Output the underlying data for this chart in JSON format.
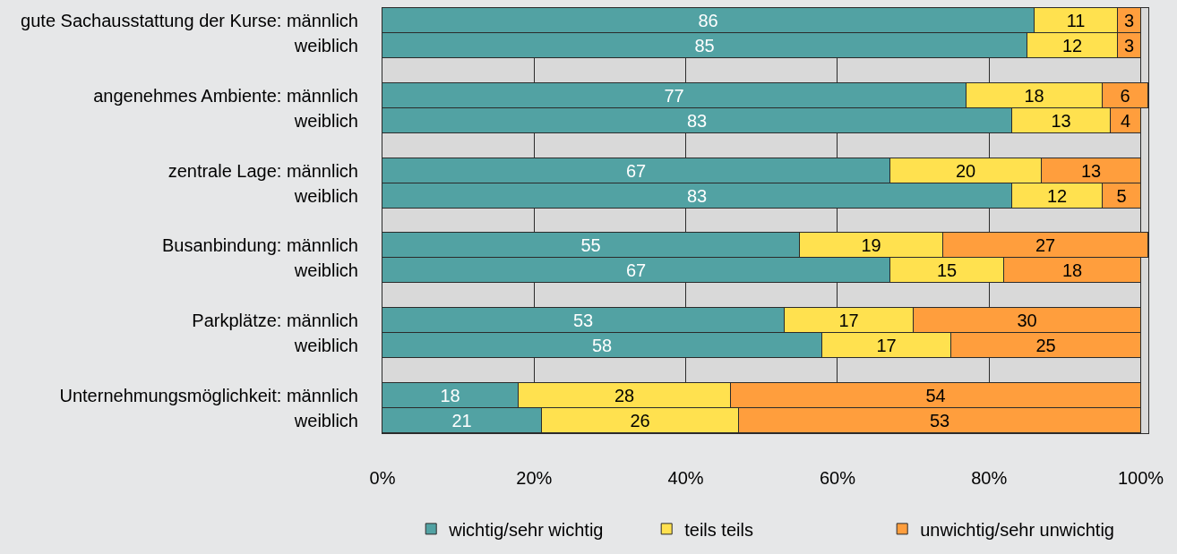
{
  "chart_data": {
    "type": "bar",
    "orientation": "horizontal",
    "stacked": true,
    "categories": [
      "gute Sachausstattung der Kurse: männlich",
      "weiblich",
      null,
      "angenehmes Ambiente: männlich",
      "weiblich",
      null,
      "zentrale Lage: männlich",
      "weiblich",
      null,
      "Busanbindung: männlich",
      "weiblich",
      null,
      "Parkplätze: männlich",
      "weiblich",
      null,
      "Unternehmungsmöglichkeit: männlich",
      "weiblich"
    ],
    "series": [
      {
        "name": "wichtig/sehr wichtig",
        "color": "#52a2a3",
        "values": [
          86,
          85,
          null,
          77,
          83,
          null,
          67,
          83,
          null,
          55,
          67,
          null,
          53,
          58,
          null,
          18,
          21
        ]
      },
      {
        "name": "teils teils",
        "color": "#ffe14f",
        "values": [
          11,
          12,
          null,
          18,
          13,
          null,
          20,
          12,
          null,
          19,
          15,
          null,
          17,
          17,
          null,
          28,
          26
        ]
      },
      {
        "name": "unwichtig/sehr unwichtig",
        "color": "#ff9e3d",
        "values": [
          3,
          3,
          null,
          6,
          4,
          null,
          13,
          5,
          null,
          27,
          18,
          null,
          30,
          25,
          null,
          54,
          53
        ]
      }
    ],
    "xlim": [
      0,
      101
    ],
    "xticks": [
      {
        "value": 0,
        "label": "0%"
      },
      {
        "value": 20,
        "label": "20%"
      },
      {
        "value": 40,
        "label": "40%"
      },
      {
        "value": 60,
        "label": "60%"
      },
      {
        "value": 80,
        "label": "80%"
      },
      {
        "value": 100,
        "label": "100%"
      }
    ],
    "grid": "x",
    "legend": "bottom",
    "data_labels": true
  }
}
